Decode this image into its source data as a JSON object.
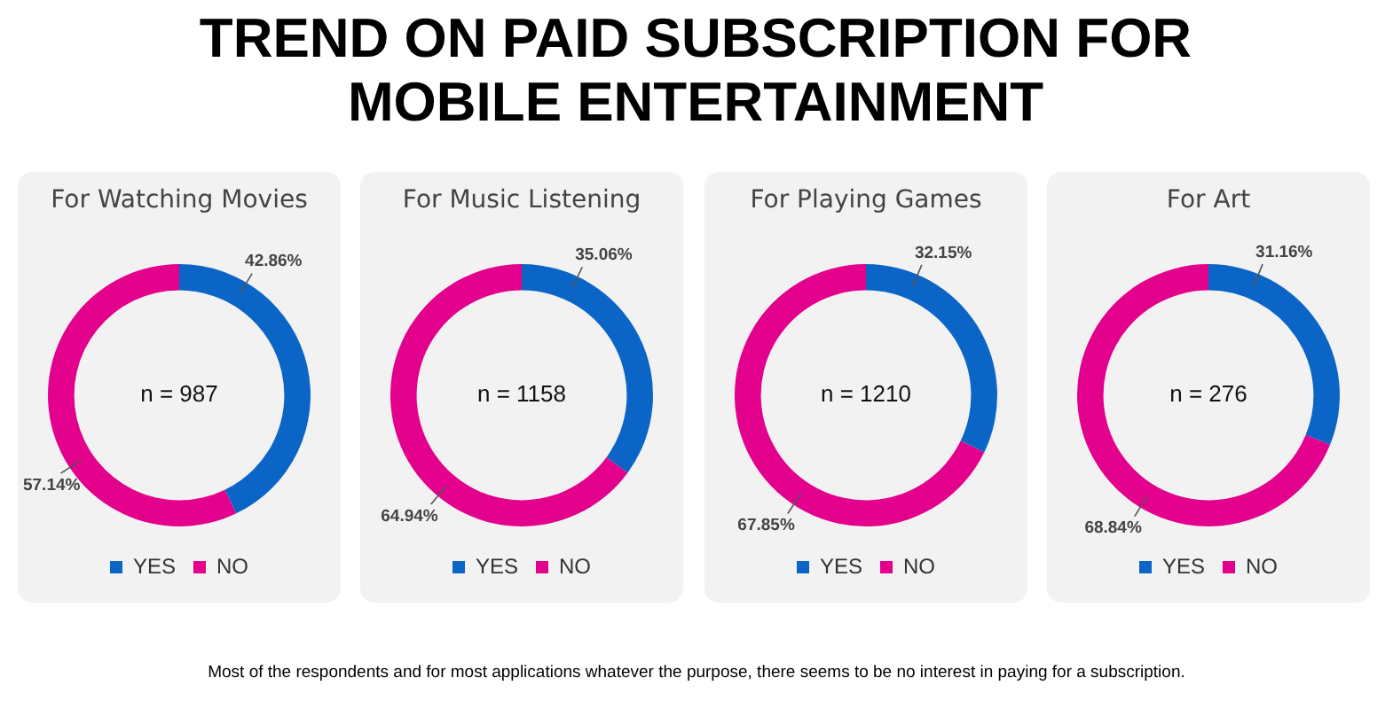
{
  "chart_data": [
    {
      "type": "other",
      "title": "TREND ON PAID SUBSCRIPTION FOR MOBILE ENTERTAINMENT",
      "annotations": [
        "Most of the respondents and for most applications whatever the purpose, there seems to be no interest in paying for a subscription."
      ]
    },
    {
      "type": "donut",
      "title": "For Watching Movies",
      "categories": [
        "YES",
        "NO"
      ],
      "values": [
        42.86,
        57.14
      ],
      "value_labels": [
        "42.86%",
        "57.14%"
      ],
      "colors": [
        "#0b65c6",
        "#e3008c"
      ],
      "legend": "bottom",
      "annotations": [
        "n = 987"
      ]
    },
    {
      "type": "donut",
      "title": "For Music Listening",
      "categories": [
        "YES",
        "NO"
      ],
      "values": [
        35.06,
        64.94
      ],
      "value_labels": [
        "35.06%",
        "64.94%"
      ],
      "colors": [
        "#0b65c6",
        "#e3008c"
      ],
      "legend": "bottom",
      "annotations": [
        "n = 1158"
      ]
    },
    {
      "type": "donut",
      "title": "For Playing Games",
      "categories": [
        "YES",
        "NO"
      ],
      "values": [
        32.15,
        67.85
      ],
      "value_labels": [
        "32.15%",
        "67.85%"
      ],
      "colors": [
        "#0b65c6",
        "#e3008c"
      ],
      "legend": "bottom",
      "annotations": [
        "n = 1210"
      ]
    },
    {
      "type": "donut",
      "title": "For Art",
      "categories": [
        "YES",
        "NO"
      ],
      "values": [
        31.16,
        68.84
      ],
      "value_labels": [
        "31.16%",
        "68.84%"
      ],
      "colors": [
        "#0b65c6",
        "#e3008c"
      ],
      "legend": "bottom",
      "annotations": [
        "n = 276"
      ]
    }
  ]
}
